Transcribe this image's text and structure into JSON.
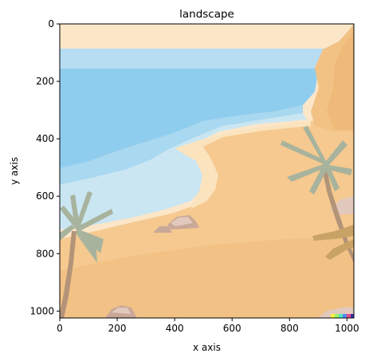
{
  "chart_data": {
    "type": "image",
    "title": "landscape",
    "xlabel": "x axis",
    "ylabel": "y axis",
    "xlim": [
      0,
      1024
    ],
    "ylim": [
      1024,
      0
    ],
    "y_inverted": true,
    "grid": false,
    "xticks": [
      0,
      200,
      400,
      600,
      800,
      1000
    ],
    "yticks": [
      0,
      200,
      400,
      600,
      800,
      1000
    ],
    "xtick_labels": [
      "0",
      "200",
      "400",
      "600",
      "800",
      "1000"
    ],
    "ytick_labels": [
      "0",
      "200",
      "400",
      "600",
      "800",
      "1000"
    ],
    "image_content": "cartoon beach landscape: sea, wet sand, beach, palm trees, rocks, cliff",
    "colors": {
      "sky": "#fbe6c8",
      "sea_far": "#b7ddf3",
      "sea": "#8fcdef",
      "shallow": "#a9d8f1",
      "surf": "#c9e6f2",
      "foam": "#fbe3bd",
      "sand": "#f5c98f",
      "sand_dark": "#f0bc7e",
      "cliff": "#f2c285",
      "palm_leaf": "#a8b39d",
      "palm_trunk": "#b39478",
      "rock": "#e2c9bd",
      "rock_shadow": "#c9a897"
    }
  }
}
